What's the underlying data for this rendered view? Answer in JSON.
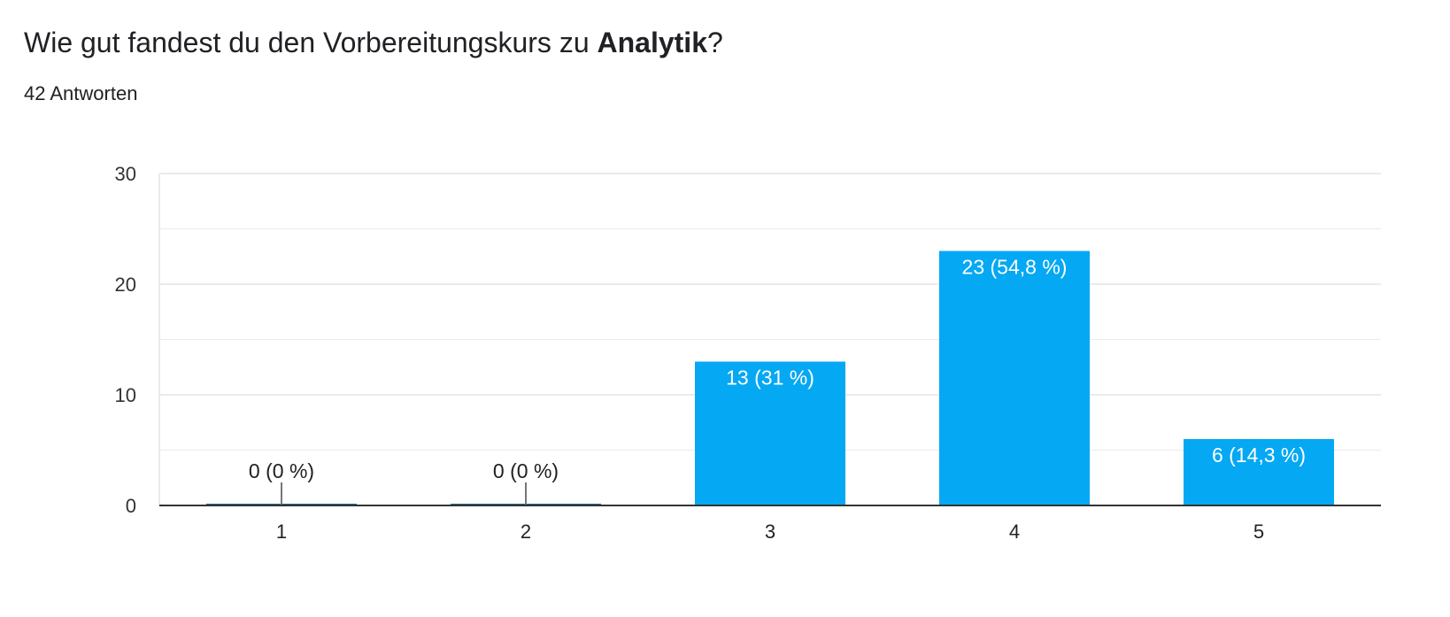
{
  "question": {
    "prefix": "Wie gut fandest du den Vorbereitungskurs zu ",
    "emphasis": "Analytik",
    "suffix": "?"
  },
  "response_count": "42 Antworten",
  "colors": {
    "bar": "#05a8f3",
    "gridline": "#ebebeb",
    "baseline": "#333333",
    "text": "#202124",
    "label_inside": "#ffffff",
    "label_outside": "#202124"
  },
  "chart_data": {
    "type": "bar",
    "categories": [
      "1",
      "2",
      "3",
      "4",
      "5"
    ],
    "values": [
      0,
      0,
      13,
      23,
      6
    ],
    "data_labels": [
      "0 (0 %)",
      "0 (0 %)",
      "13 (31 %)",
      "23 (54,8 %)",
      "6 (14,3 %)"
    ],
    "yticks": [
      0,
      10,
      20,
      30
    ],
    "ylim": [
      0,
      30
    ],
    "minor_gridlines": [
      5,
      15,
      25
    ],
    "grid": true,
    "title": "",
    "xlabel": "",
    "ylabel": ""
  }
}
